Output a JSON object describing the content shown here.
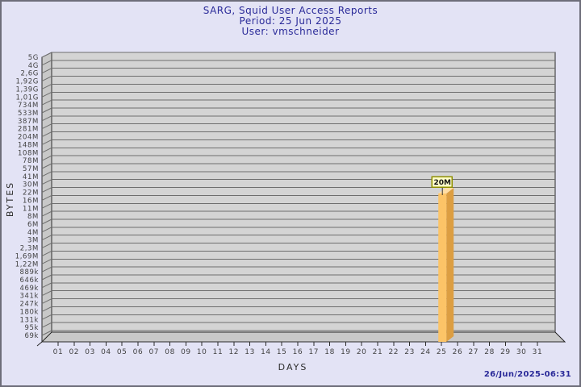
{
  "window": {
    "background": "#e3e3f5",
    "border_color": "#6e6e7a"
  },
  "header": {
    "title": "SARG, Squid User Access Reports",
    "period": "Period: 25 Jun 2025",
    "user": "User: vmschneider",
    "text_color": "#2a2a99"
  },
  "chart": {
    "y_axis_title": "BYTES",
    "x_axis_title": "DAYS",
    "y_tick_labels": [
      "5G",
      "4G",
      "2,6G",
      "1,92G",
      "1,39G",
      "1,01G",
      "734M",
      "533M",
      "387M",
      "281M",
      "204M",
      "148M",
      "108M",
      "78M",
      "57M",
      "41M",
      "30M",
      "22M",
      "16M",
      "11M",
      "8M",
      "6M",
      "4M",
      "3M",
      "2,3M",
      "1,69M",
      "1,22M",
      "889k",
      "646k",
      "469k",
      "341k",
      "247k",
      "180k",
      "131k",
      "95k",
      "69k"
    ],
    "x_tick_labels": [
      "01",
      "02",
      "03",
      "04",
      "05",
      "06",
      "07",
      "08",
      "09",
      "10",
      "11",
      "12",
      "13",
      "14",
      "15",
      "16",
      "17",
      "18",
      "19",
      "20",
      "21",
      "22",
      "23",
      "24",
      "25",
      "26",
      "27",
      "28",
      "29",
      "30",
      "31"
    ],
    "bar": {
      "day": "25",
      "value_label": "20M"
    },
    "colors": {
      "wall": "#d4d4d4",
      "wall_side": "#c8c8c8",
      "gridline": "#6e6e6e",
      "frame": "#2b2b2b",
      "tick_label": "#414141",
      "axis_title": "#2b2b2b",
      "bar_front": "#fcc467",
      "bar_side": "#dc9e42",
      "bar_top": "#ffdda4",
      "annotation_bg": "#ffffc8",
      "annotation_border": "#8f8f00",
      "annotation_text": "#111111"
    }
  },
  "footer": {
    "timestamp": "26/Jun/2025-06:31"
  },
  "chart_data": {
    "type": "bar",
    "title": "SARG, Squid User Access Reports",
    "subtitle": "Period: 25 Jun 2025 — User: vmschneider",
    "xlabel": "DAYS",
    "ylabel": "BYTES",
    "categories": [
      "01",
      "02",
      "03",
      "04",
      "05",
      "06",
      "07",
      "08",
      "09",
      "10",
      "11",
      "12",
      "13",
      "14",
      "15",
      "16",
      "17",
      "18",
      "19",
      "20",
      "21",
      "22",
      "23",
      "24",
      "25",
      "26",
      "27",
      "28",
      "29",
      "30",
      "31"
    ],
    "values": [
      0,
      0,
      0,
      0,
      0,
      0,
      0,
      0,
      0,
      0,
      0,
      0,
      0,
      0,
      0,
      0,
      0,
      0,
      0,
      0,
      0,
      0,
      0,
      0,
      20000000,
      0,
      0,
      0,
      0,
      0,
      0
    ],
    "value_unit": "bytes",
    "annotations": [
      {
        "category": "25",
        "label": "20M"
      }
    ],
    "y_scale": "log-ladder",
    "y_ticks": [
      "5G",
      "4G",
      "2,6G",
      "1,92G",
      "1,39G",
      "1,01G",
      "734M",
      "533M",
      "387M",
      "281M",
      "204M",
      "148M",
      "108M",
      "78M",
      "57M",
      "41M",
      "30M",
      "22M",
      "16M",
      "11M",
      "8M",
      "6M",
      "4M",
      "3M",
      "2,3M",
      "1,69M",
      "1,22M",
      "889k",
      "646k",
      "469k",
      "341k",
      "247k",
      "180k",
      "131k",
      "95k",
      "69k"
    ],
    "grid": "horizontal",
    "legend": "none",
    "style": "3d-bar"
  }
}
